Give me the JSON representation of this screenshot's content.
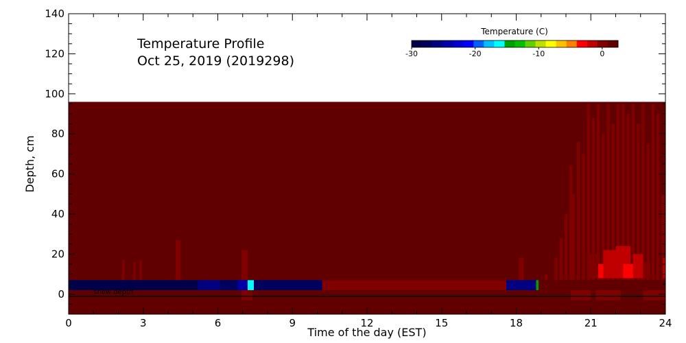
{
  "chart_data": {
    "type": "heatmap",
    "title_lines": [
      "Temperature Profile",
      "Oct 25, 2019 (2019298)"
    ],
    "xlabel": "Time of the day (EST)",
    "ylabel": "Depth, cm",
    "xlim": [
      0,
      24
    ],
    "ylim": [
      -10,
      140
    ],
    "xticks": [
      0,
      3,
      6,
      9,
      12,
      15,
      18,
      21,
      24
    ],
    "yticks": [
      0,
      20,
      40,
      60,
      80,
      100,
      120,
      140
    ],
    "colorbar": {
      "title": "Temperature (C)",
      "ticks": [
        -30,
        -20,
        -10,
        0
      ],
      "range": [
        -30,
        2.5
      ],
      "colors": [
        "#00004a",
        "#00005e",
        "#000080",
        "#0000a8",
        "#0000d0",
        "#0000ff",
        "#0060ff",
        "#00c0ff",
        "#00ffff",
        "#00a000",
        "#00c000",
        "#60d000",
        "#c0e000",
        "#ffff00",
        "#ffc000",
        "#ff8000",
        "#ff0000",
        "#c00000",
        "#800000",
        "#600000"
      ]
    },
    "field_top_depth": 96,
    "field_bottom_depth": -10,
    "background_value": 1.5,
    "snow_depth": {
      "label": "snow depth",
      "value": -1
    },
    "surface_band": {
      "top": 7,
      "bottom": 2,
      "segments": [
        {
          "x0": 0.0,
          "x1": 5.2,
          "value": -29
        },
        {
          "x0": 5.2,
          "x1": 6.1,
          "value": -26
        },
        {
          "x0": 6.1,
          "x1": 6.8,
          "value": -28
        },
        {
          "x0": 6.8,
          "x1": 7.2,
          "value": -24
        },
        {
          "x0": 7.2,
          "x1": 7.45,
          "value": -16
        },
        {
          "x0": 7.45,
          "x1": 10.2,
          "value": -28
        },
        {
          "x0": 10.2,
          "x1": 17.6,
          "value": 0.2
        },
        {
          "x0": 17.6,
          "x1": 18.8,
          "value": -26
        },
        {
          "x0": 18.8,
          "x1": 18.9,
          "value": -14
        },
        {
          "x0": 18.9,
          "x1": 24.0,
          "value": 1.5
        }
      ]
    },
    "warm_spikes": [
      {
        "x0": 2.15,
        "x1": 2.25,
        "top": 17,
        "value": 0.3
      },
      {
        "x0": 2.6,
        "x1": 2.7,
        "top": 16,
        "value": 0.3
      },
      {
        "x0": 2.85,
        "x1": 2.95,
        "top": 17,
        "value": 0.3
      },
      {
        "x0": 4.3,
        "x1": 4.5,
        "top": 27,
        "value": 0.3
      },
      {
        "x0": 6.95,
        "x1": 7.2,
        "top": 22,
        "value": 0.3
      },
      {
        "x0": 18.1,
        "x1": 18.3,
        "top": 18,
        "value": 0.3
      }
    ],
    "below_band": [
      {
        "x0": 6.95,
        "x1": 7.4,
        "top": 2,
        "bottom": -3,
        "value": 0.2
      },
      {
        "x0": 20.2,
        "x1": 21.0,
        "top": 2,
        "bottom": -3,
        "value": 0.5
      },
      {
        "x0": 21.2,
        "x1": 22.2,
        "top": 2,
        "bottom": -3,
        "value": 0.2
      },
      {
        "x0": 23.1,
        "x1": 24.0,
        "top": 2,
        "bottom": -3,
        "value": 0.2
      }
    ],
    "evening_columns": [
      {
        "x": 19.2,
        "top": 10,
        "value": 0.8
      },
      {
        "x": 19.6,
        "top": 18,
        "value": 0.8
      },
      {
        "x": 19.8,
        "top": 28,
        "value": 0.5
      },
      {
        "x": 20.0,
        "top": 40,
        "value": 0.5
      },
      {
        "x": 20.2,
        "top": 64,
        "value": 0.3
      },
      {
        "x": 20.3,
        "top": 50,
        "value": 0.8
      },
      {
        "x": 20.5,
        "top": 76,
        "value": 0.3
      },
      {
        "x": 20.7,
        "top": 70,
        "value": 0.5
      },
      {
        "x": 20.9,
        "top": 95,
        "value": 0.3
      },
      {
        "x": 21.1,
        "top": 88,
        "value": 0.3
      },
      {
        "x": 21.3,
        "top": 95,
        "value": 0.2
      },
      {
        "x": 21.5,
        "top": 80,
        "value": 0.2
      },
      {
        "x": 21.7,
        "top": 95,
        "value": 0.2
      },
      {
        "x": 21.9,
        "top": 85,
        "value": 0.2
      },
      {
        "x": 22.1,
        "top": 95,
        "value": 0.2
      },
      {
        "x": 22.3,
        "top": 95,
        "value": 0.2
      },
      {
        "x": 22.5,
        "top": 90,
        "value": 0.2
      },
      {
        "x": 22.7,
        "top": 95,
        "value": 0.2
      },
      {
        "x": 22.9,
        "top": 85,
        "value": 0.3
      },
      {
        "x": 23.1,
        "top": 95,
        "value": 0.5
      },
      {
        "x": 23.3,
        "top": 75,
        "value": 0.3
      },
      {
        "x": 23.5,
        "top": 95,
        "value": 0.3
      },
      {
        "x": 23.7,
        "top": 90,
        "value": 0.5
      },
      {
        "x": 23.9,
        "top": 50,
        "value": 0.3
      }
    ],
    "evening_warm_patches": [
      {
        "x0": 20.9,
        "x1": 21.3,
        "y0": 8,
        "y1": 20,
        "value": -0.6
      },
      {
        "x0": 21.3,
        "x1": 21.6,
        "y0": 8,
        "y1": 15,
        "value": -2.5
      },
      {
        "x0": 21.5,
        "x1": 22.0,
        "y0": 8,
        "y1": 22,
        "value": -1.2
      },
      {
        "x0": 22.0,
        "x1": 22.6,
        "y0": 8,
        "y1": 24,
        "value": -1.5
      },
      {
        "x0": 22.3,
        "x1": 22.7,
        "y0": 8,
        "y1": 15,
        "value": -3.0
      },
      {
        "x0": 22.7,
        "x1": 23.1,
        "y0": 8,
        "y1": 20,
        "value": -1.8
      },
      {
        "x0": 23.1,
        "x1": 23.4,
        "y0": 8,
        "y1": 16,
        "value": -0.6
      },
      {
        "x0": 23.9,
        "x1": 24.0,
        "y0": 8,
        "y1": 18,
        "value": -1.5
      }
    ]
  }
}
